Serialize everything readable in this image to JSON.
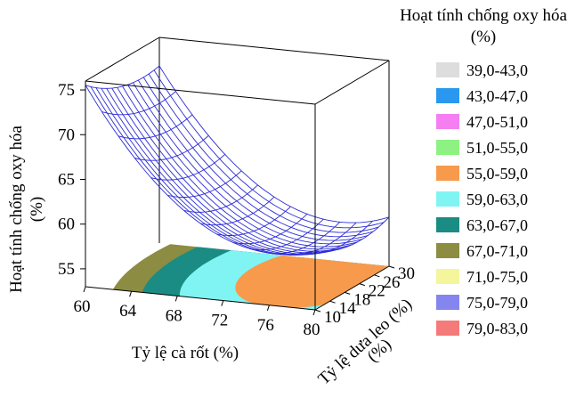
{
  "chart_data": {
    "type": "surface3d",
    "title": "",
    "xlabel": "Tỷ lệ cà rốt (%)",
    "ylabel": "Tỷ lệ dưa leo (%)",
    "zlabel_line1": "Hoạt tính chống oxy hóa",
    "zlabel_line2": "(%)",
    "xlim": [
      60,
      80
    ],
    "ylim": [
      10,
      30
    ],
    "zlim": [
      53,
      76
    ],
    "x_ticks": [
      "60",
      "64",
      "68",
      "72",
      "76",
      "80"
    ],
    "y_ticks": [
      "10",
      "14",
      "18",
      "22",
      "26",
      "30"
    ],
    "z_ticks": [
      "55",
      "60",
      "65",
      "70",
      "75"
    ],
    "model": {
      "z0": 56.8,
      "x0": 76,
      "y0": 23,
      "a": 0.062,
      "b": 0.012,
      "c": 0.004
    },
    "contour_regions": [
      {
        "range": "67,0-71,0",
        "color": "#8c8c42"
      },
      {
        "range": "63,0-67,0",
        "color": "#1a8c84"
      },
      {
        "range": "59,0-63,0",
        "color": "#7ff4f2"
      },
      {
        "range": "55,0-59,0",
        "color": "#f79a4c"
      }
    ],
    "surface_color": "#2b2bd6"
  },
  "legend": {
    "title_line1": "Hoạt tính chống oxy hóa",
    "title_line2": "(%)",
    "items": [
      {
        "label": "39,0-43,0",
        "color": "#dddddd"
      },
      {
        "label": "43,0-47,0",
        "color": "#2a98ee"
      },
      {
        "label": "47,0-51,0",
        "color": "#f47ef2"
      },
      {
        "label": "51,0-55,0",
        "color": "#8ef282"
      },
      {
        "label": "55,0-59,0",
        "color": "#f79a4c"
      },
      {
        "label": "59,0-63,0",
        "color": "#7ff4f2"
      },
      {
        "label": "63,0-67,0",
        "color": "#1a8c84"
      },
      {
        "label": "67,0-71,0",
        "color": "#8c8c42"
      },
      {
        "label": "71,0-75,0",
        "color": "#f5f59c"
      },
      {
        "label": "75,0-79,0",
        "color": "#8585f0"
      },
      {
        "label": "79,0-83,0",
        "color": "#f57a7a"
      }
    ]
  }
}
